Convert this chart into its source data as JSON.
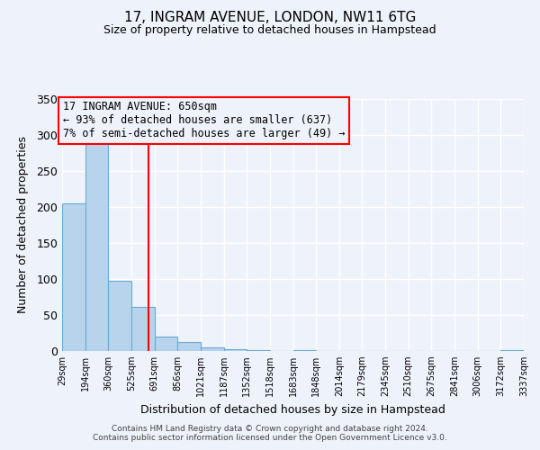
{
  "title_line1": "17, INGRAM AVENUE, LONDON, NW11 6TG",
  "title_line2": "Size of property relative to detached houses in Hampstead",
  "xlabel": "Distribution of detached houses by size in Hampstead",
  "ylabel": "Number of detached properties",
  "bar_color": "#b8d4ec",
  "bar_edge_color": "#6aaad4",
  "property_line_x": 650,
  "property_line_color": "red",
  "annotation_title": "17 INGRAM AVENUE: 650sqm",
  "annotation_line1": "← 93% of detached houses are smaller (637)",
  "annotation_line2": "7% of semi-detached houses are larger (49) →",
  "annotation_box_color": "red",
  "ylim": [
    0,
    350
  ],
  "yticks": [
    0,
    50,
    100,
    150,
    200,
    250,
    300,
    350
  ],
  "bin_edges": [
    29,
    194,
    360,
    525,
    691,
    856,
    1021,
    1187,
    1352,
    1518,
    1683,
    1848,
    2014,
    2179,
    2345,
    2510,
    2675,
    2841,
    3006,
    3172,
    3337
  ],
  "bin_labels": [
    "29sqm",
    "194sqm",
    "360sqm",
    "525sqm",
    "691sqm",
    "856sqm",
    "1021sqm",
    "1187sqm",
    "1352sqm",
    "1518sqm",
    "1683sqm",
    "1848sqm",
    "2014sqm",
    "2179sqm",
    "2345sqm",
    "2510sqm",
    "2675sqm",
    "2841sqm",
    "3006sqm",
    "3172sqm",
    "3337sqm"
  ],
  "bar_heights": [
    205,
    291,
    97,
    61,
    20,
    13,
    5,
    3,
    1,
    0,
    1,
    0,
    0,
    0,
    0,
    0,
    0,
    0,
    0,
    1
  ],
  "footer_line1": "Contains HM Land Registry data © Crown copyright and database right 2024.",
  "footer_line2": "Contains public sector information licensed under the Open Government Licence v3.0.",
  "background_color": "#eef2fa",
  "grid_color": "#ffffff"
}
